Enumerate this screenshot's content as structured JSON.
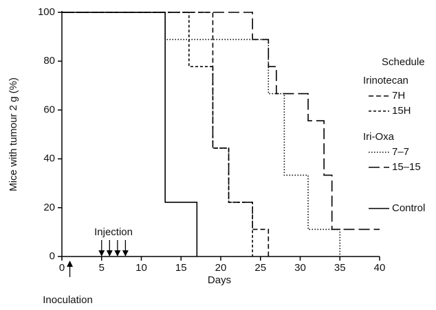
{
  "chart_data": {
    "type": "line",
    "xlabel": "Days",
    "ylabel": "Mice with tumour   2 g (%)",
    "xlim": [
      0,
      40
    ],
    "xticks": [
      0,
      5,
      10,
      15,
      20,
      25,
      30,
      35,
      40
    ],
    "ylim": [
      0,
      100
    ],
    "yticks": [
      0,
      20,
      40,
      60,
      80,
      100
    ],
    "legend_title": "Schedule",
    "groups": [
      {
        "name": "Irinotecan",
        "series": [
          {
            "name": "7H",
            "color": "#000000",
            "dash": "7 4",
            "x": [
              0,
              19,
              19,
              21,
              21,
              24,
              24,
              26,
              26
            ],
            "values": [
              100,
              100,
              44.4,
              44.4,
              22.2,
              22.2,
              11.1,
              11.1,
              0
            ]
          },
          {
            "name": "15H",
            "color": "#000000",
            "dash": "4 3",
            "x": [
              0,
              16,
              16,
              19,
              19,
              21,
              21,
              24,
              24
            ],
            "values": [
              100,
              100,
              77.8,
              77.8,
              44.4,
              44.4,
              22.2,
              22.2,
              0
            ]
          }
        ]
      },
      {
        "name": "Iri-Oxa",
        "series": [
          {
            "name": "7–7",
            "color": "#000000",
            "dash": "1.5 2.5",
            "x": [
              0,
              13,
              13,
              26,
              26,
              28,
              28,
              31,
              31,
              35,
              35
            ],
            "values": [
              100,
              100,
              88.9,
              88.9,
              66.7,
              66.7,
              33.3,
              33.3,
              11.1,
              11.1,
              0
            ]
          },
          {
            "name": "15–15",
            "color": "#000000",
            "dash": "16 6",
            "x": [
              0,
              24,
              24,
              26,
              26,
              27,
              27,
              31,
              31,
              33,
              33,
              34,
              34,
              40
            ],
            "values": [
              100,
              100,
              88.9,
              88.9,
              77.8,
              77.8,
              66.7,
              66.7,
              55.6,
              55.6,
              33.3,
              33.3,
              11.1,
              11.1
            ]
          }
        ]
      },
      {
        "series": [
          {
            "name": "Control",
            "color": "#000000",
            "dash": "none",
            "x": [
              0,
              13,
              13,
              17,
              17
            ],
            "values": [
              100,
              100,
              22.2,
              22.2,
              0
            ]
          }
        ]
      }
    ],
    "annotations": [
      {
        "text": "Injection",
        "x": [
          5,
          6,
          7,
          8
        ]
      },
      {
        "text": "Inoculation",
        "x": [
          1
        ]
      }
    ]
  }
}
